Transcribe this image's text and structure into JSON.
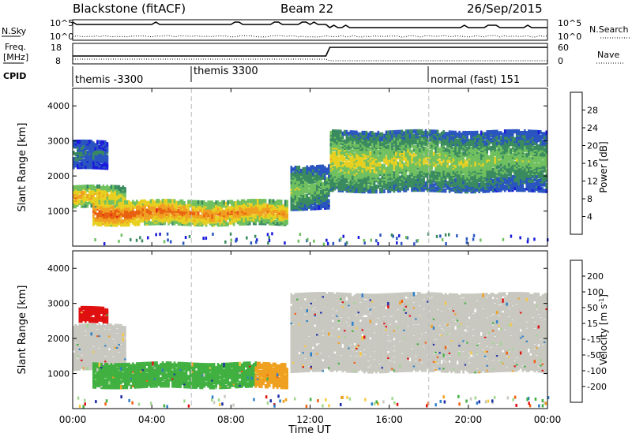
{
  "header": {
    "station": "Blackstone (fitACF)",
    "beam": "Beam 22",
    "date": "26/Sep/2015"
  },
  "top_panels": {
    "nsky_label": "N.Sky",
    "nsearch_label": "N.Search",
    "freq_label_1": "Freq.",
    "freq_label_2": "[MHz]",
    "nave_label": "Nave",
    "cpid_label": "CPID",
    "noise_ticks_left": [
      "10^5",
      "10^0"
    ],
    "noise_ticks_right": [
      "10^5",
      "10^0"
    ],
    "freq_ticks_left": [
      "18",
      "8"
    ],
    "nave_ticks_right": [
      "60",
      "0"
    ]
  },
  "cpid": [
    {
      "label": "themis -3300",
      "start_hour": 0.0
    },
    {
      "label": "themis 3300",
      "start_hour": 6.0
    },
    {
      "label": "normal (fast) 151",
      "start_hour": 18.0
    }
  ],
  "colors": {
    "power": [
      "#1a1adc",
      "#2a55c0",
      "#3a8a60",
      "#70c060",
      "#e8d020",
      "#f0a020",
      "#e86010",
      "#e02010"
    ],
    "velocity": [
      "#e01010",
      "#f06010",
      "#f0a020",
      "#f8c840",
      "#c8c8c0",
      "#a0d890",
      "#40b040",
      "#2e7fc8",
      "#1a2aa8"
    ]
  },
  "chart_data": [
    {
      "type": "heatmap",
      "title": "Power",
      "ylabel": "Slant Range [km]",
      "xlabel": "",
      "x_range_hours": [
        0,
        24
      ],
      "ylim": [
        0,
        4500
      ],
      "y_ticks": [
        1000,
        2000,
        3000,
        4000
      ],
      "colorbar_label": "Power [dB]",
      "colorbar_ticks": [
        "28",
        "24",
        "20",
        "16",
        "12",
        "8",
        "4"
      ],
      "bands": [
        {
          "t0": 0.0,
          "t1": 2.7,
          "r0": 1150,
          "r1": 1700,
          "v0": 22,
          "v1": 10
        },
        {
          "t0": 0.0,
          "t1": 1.8,
          "r0": 2250,
          "r1": 3000,
          "v0": 10,
          "v1": 4
        },
        {
          "t0": 1.0,
          "t1": 10.8,
          "r0": 650,
          "r1": 1300,
          "v0": 26,
          "v1": 12
        },
        {
          "t0": 11.0,
          "t1": 12.9,
          "r0": 1100,
          "r1": 2300,
          "v0": 16,
          "v1": 6
        },
        {
          "t0": 13.0,
          "t1": 24.0,
          "r0": 1600,
          "r1": 3300,
          "v0": 18,
          "v1": 6
        }
      ]
    },
    {
      "type": "heatmap",
      "title": "Velocity",
      "ylabel": "Slant Range [km]",
      "xlabel": "Time UT",
      "x_range_hours": [
        0,
        24
      ],
      "ylim": [
        0,
        4500
      ],
      "y_ticks": [
        1000,
        2000,
        3000,
        4000
      ],
      "x_tick_labels": [
        "00:00",
        "04:00",
        "08:00",
        "12:00",
        "16:00",
        "20:00",
        "00:00"
      ],
      "colorbar_label": "Velocity [m s^-1]",
      "colorbar_ticks": [
        "200",
        "100",
        "50",
        "15",
        "-15",
        "-50",
        "-100",
        "-200"
      ],
      "bands": [
        {
          "t0": 0.0,
          "t1": 2.7,
          "r0": 1150,
          "r1": 2400,
          "v": "-15..15"
        },
        {
          "t0": 0.3,
          "t1": 1.8,
          "r0": 2500,
          "r1": 2900,
          "v": "-200..-100"
        },
        {
          "t0": 1.0,
          "t1": 9.2,
          "r0": 650,
          "r1": 1300,
          "v": "15..50"
        },
        {
          "t0": 9.2,
          "t1": 10.8,
          "r0": 650,
          "r1": 1300,
          "v": "-50..-15"
        },
        {
          "t0": 11.0,
          "t1": 24.0,
          "r0": 1100,
          "r1": 3300,
          "v": "-15..15"
        }
      ]
    }
  ]
}
